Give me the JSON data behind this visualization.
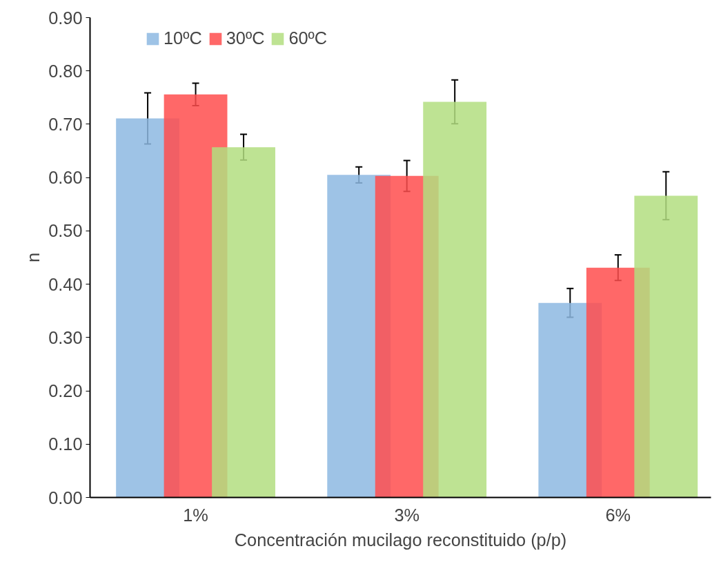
{
  "chart_data": {
    "type": "bar",
    "xlabel": "Concentración mucilago reconstituido (p/p)",
    "ylabel": "n",
    "categories": [
      "1%",
      "3%",
      "6%"
    ],
    "series": [
      {
        "name": "10ºC",
        "color": "#8db8e2",
        "values": [
          0.711,
          0.605,
          0.365
        ],
        "errors": [
          0.048,
          0.015,
          0.027
        ]
      },
      {
        "name": "30ºC",
        "color": "#ff4d4d",
        "values": [
          0.756,
          0.603,
          0.431
        ],
        "errors": [
          0.021,
          0.029,
          0.024
        ]
      },
      {
        "name": "60ºC",
        "color": "#b3de80",
        "values": [
          0.657,
          0.742,
          0.566
        ],
        "errors": [
          0.024,
          0.041,
          0.045
        ]
      }
    ],
    "ylim": [
      0,
      0.9
    ],
    "yticks": [
      {
        "value": 0,
        "label": "0.00"
      },
      {
        "value": 0.1,
        "label": "0.10"
      },
      {
        "value": 0.2,
        "label": "0.20"
      },
      {
        "value": 0.3,
        "label": "0.30"
      },
      {
        "value": 0.4,
        "label": "0.40"
      },
      {
        "value": 0.5,
        "label": "0.50"
      },
      {
        "value": 0.6,
        "label": "0.60"
      },
      {
        "value": 0.7,
        "label": "0.70"
      },
      {
        "value": 0.8,
        "label": "0.80"
      },
      {
        "value": 0.9,
        "label": "0.90"
      }
    ],
    "grid": false,
    "legend": "top left"
  }
}
